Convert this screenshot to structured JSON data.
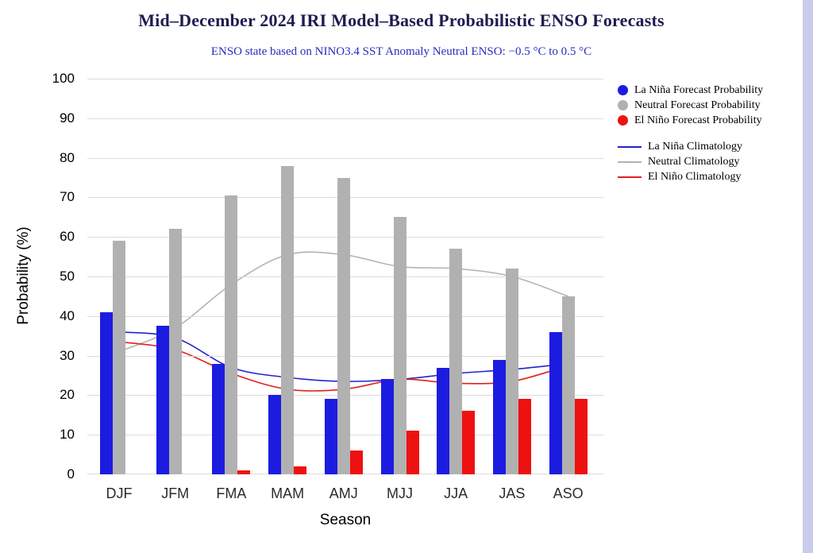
{
  "page": {
    "background": "#ffffff",
    "edge_strip_color": "#cbcbee"
  },
  "chart_data": {
    "type": "bar",
    "title": "Mid–December 2024 IRI Model–Based Probabilistic ENSO Forecasts",
    "subtitle": "ENSO state based on NINO3.4 SST Anomaly Neutral ENSO: −0.5 °C to 0.5 °C",
    "xlabel": "Season",
    "ylabel": "Probability (%)",
    "ylim": [
      0,
      100
    ],
    "ytick_step": 10,
    "yticks": [
      0,
      10,
      20,
      30,
      40,
      50,
      60,
      70,
      80,
      90,
      100
    ],
    "grid": true,
    "legend_position": "right",
    "categories": [
      "DJF",
      "JFM",
      "FMA",
      "MAM",
      "AMJ",
      "MJJ",
      "JJA",
      "JAS",
      "ASO"
    ],
    "bar_series": [
      {
        "name": "La Niña Forecast Probability",
        "color": "#1c1ce0",
        "values": [
          41,
          37.5,
          28,
          20,
          19,
          24,
          27,
          29,
          36
        ]
      },
      {
        "name": "Neutral Forecast Probability",
        "color": "#b1b1b1",
        "values": [
          59,
          62,
          70.5,
          78,
          75,
          65,
          57,
          52,
          45
        ]
      },
      {
        "name": "El Niño Forecast Probability",
        "color": "#ee1111",
        "values": [
          0,
          0,
          1,
          2,
          6,
          11,
          16,
          19,
          19
        ]
      }
    ],
    "line_series": [
      {
        "name": "La Niña Climatology",
        "color": "#2323cc",
        "values": [
          36,
          34.5,
          27,
          24.5,
          23.5,
          24,
          25.5,
          26.5,
          28
        ]
      },
      {
        "name": "Neutral Climatology",
        "color": "#b3b3b3",
        "values": [
          31,
          37,
          48,
          55.5,
          55.5,
          52.5,
          52,
          50,
          45
        ]
      },
      {
        "name": "El Niño Climatology",
        "color": "#e02020",
        "values": [
          33.5,
          31.5,
          25.5,
          21.5,
          21.5,
          24,
          23,
          23.5,
          27.5
        ]
      }
    ]
  }
}
